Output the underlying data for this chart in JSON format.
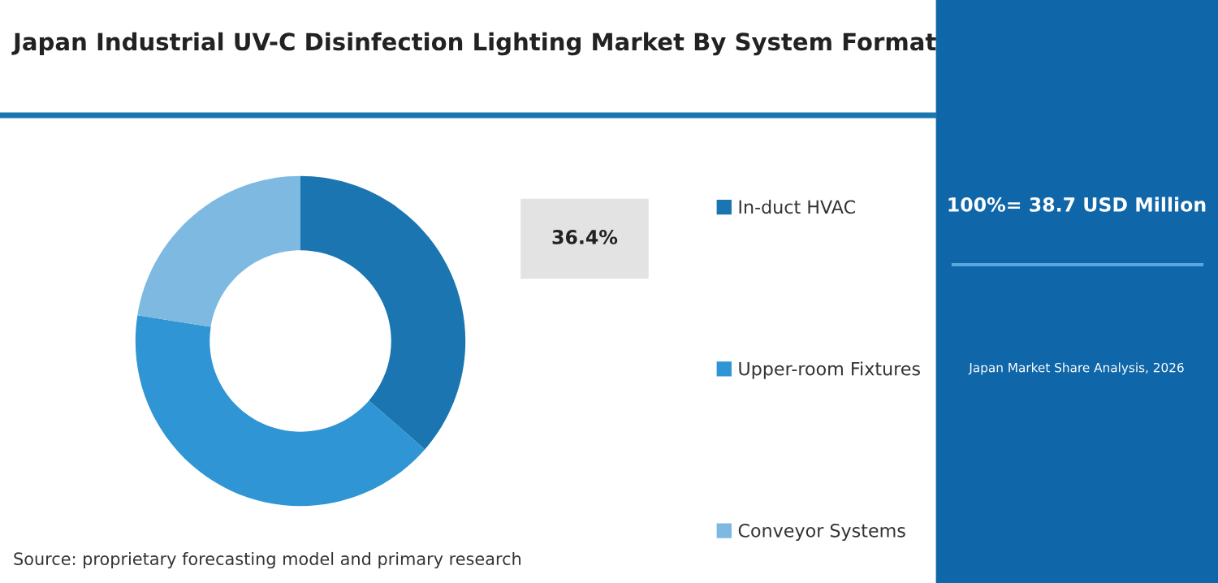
{
  "chart_data": {
    "type": "donut",
    "title": "Japan Industrial UV-C Disinfection Lighting Market By System Format",
    "categories": [
      "In-duct HVAC",
      "Upper-room Fixtures",
      "Conveyor Systems"
    ],
    "values": [
      36.4,
      41.1,
      22.5
    ],
    "colors": [
      "#1b75b0",
      "#2f95d4",
      "#7db9e0"
    ],
    "value_labels": [
      "36.4%",
      null,
      null
    ],
    "legend": "right",
    "annotations": [
      "Source: proprietary forecasting model and primary research",
      "100%= 38.7 USD Million",
      "Japan Market Share Analysis, 2026"
    ]
  }
}
